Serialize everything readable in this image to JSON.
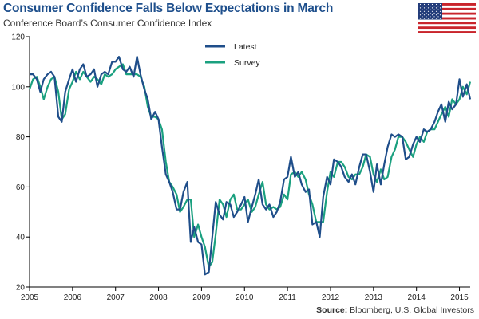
{
  "title": "Consumer Confidence Falls Below Expectations in March",
  "subtitle": "Conference Board’s Consumer Confidence Index",
  "source_label": "Source:",
  "source_text": "Bloomberg, U.S. Global Investors",
  "colors": {
    "latest": "#1f4e8a",
    "survey": "#1aa07f",
    "axis": "#000000",
    "flag_red": "#c9252c",
    "flag_blue": "#233c7a"
  },
  "chart_data": {
    "type": "line",
    "ylim": [
      20,
      120
    ],
    "yticks": [
      20,
      40,
      60,
      80,
      100,
      120
    ],
    "xlim": [
      2005.0,
      2015.25
    ],
    "xticks": [
      2005,
      2006,
      2007,
      2008,
      2009,
      2010,
      2011,
      2012,
      2013,
      2014,
      2015
    ],
    "xtick_labels": [
      "2005",
      "2006",
      "2007",
      "2008",
      "2009",
      "2010",
      "2011",
      "2012",
      "2013",
      "2014",
      "2015"
    ],
    "legend_position": "top-left",
    "grid": false,
    "series": [
      {
        "name": "Latest",
        "points": [
          [
            2005.0,
            105.0
          ],
          [
            2005.08,
            105.0
          ],
          [
            2005.17,
            103.0
          ],
          [
            2005.25,
            98.0
          ],
          [
            2005.33,
            103.0
          ],
          [
            2005.42,
            105.0
          ],
          [
            2005.5,
            106.0
          ],
          [
            2005.58,
            104.0
          ],
          [
            2005.67,
            88.0
          ],
          [
            2005.75,
            86.0
          ],
          [
            2005.83,
            98.0
          ],
          [
            2005.92,
            103.0
          ],
          [
            2006.0,
            107.0
          ],
          [
            2006.08,
            102.0
          ],
          [
            2006.17,
            107.0
          ],
          [
            2006.25,
            109.0
          ],
          [
            2006.33,
            104.0
          ],
          [
            2006.42,
            105.0
          ],
          [
            2006.5,
            107.0
          ],
          [
            2006.58,
            100.0
          ],
          [
            2006.67,
            105.0
          ],
          [
            2006.75,
            106.0
          ],
          [
            2006.83,
            105.0
          ],
          [
            2006.92,
            110.0
          ],
          [
            2007.0,
            110.0
          ],
          [
            2007.08,
            112.0
          ],
          [
            2007.17,
            107.0
          ],
          [
            2007.25,
            106.0
          ],
          [
            2007.33,
            108.0
          ],
          [
            2007.42,
            104.0
          ],
          [
            2007.5,
            112.0
          ],
          [
            2007.58,
            105.0
          ],
          [
            2007.67,
            99.0
          ],
          [
            2007.75,
            95.0
          ],
          [
            2007.83,
            87.0
          ],
          [
            2007.92,
            90.0
          ],
          [
            2008.0,
            87.0
          ],
          [
            2008.08,
            76.0
          ],
          [
            2008.17,
            65.0
          ],
          [
            2008.25,
            62.0
          ],
          [
            2008.33,
            58.0
          ],
          [
            2008.42,
            51.0
          ],
          [
            2008.5,
            51.0
          ],
          [
            2008.58,
            58.0
          ],
          [
            2008.67,
            62.0
          ],
          [
            2008.75,
            38.0
          ],
          [
            2008.83,
            44.0
          ],
          [
            2008.92,
            38.0
          ],
          [
            2009.0,
            37.0
          ],
          [
            2009.08,
            25.0
          ],
          [
            2009.17,
            26.0
          ],
          [
            2009.25,
            40.0
          ],
          [
            2009.33,
            54.0
          ],
          [
            2009.42,
            49.0
          ],
          [
            2009.5,
            47.0
          ],
          [
            2009.58,
            54.0
          ],
          [
            2009.67,
            53.0
          ],
          [
            2009.75,
            48.0
          ],
          [
            2009.83,
            50.0
          ],
          [
            2009.92,
            53.0
          ],
          [
            2010.0,
            56.0
          ],
          [
            2010.08,
            46.0
          ],
          [
            2010.17,
            52.0
          ],
          [
            2010.25,
            57.0
          ],
          [
            2010.33,
            63.0
          ],
          [
            2010.42,
            53.0
          ],
          [
            2010.5,
            51.0
          ],
          [
            2010.58,
            53.0
          ],
          [
            2010.67,
            48.0
          ],
          [
            2010.75,
            50.0
          ],
          [
            2010.83,
            54.0
          ],
          [
            2010.92,
            63.0
          ],
          [
            2011.0,
            64.0
          ],
          [
            2011.08,
            72.0
          ],
          [
            2011.17,
            64.0
          ],
          [
            2011.25,
            66.0
          ],
          [
            2011.33,
            61.0
          ],
          [
            2011.42,
            58.0
          ],
          [
            2011.5,
            59.0
          ],
          [
            2011.58,
            45.0
          ],
          [
            2011.67,
            46.0
          ],
          [
            2011.75,
            40.0
          ],
          [
            2011.83,
            56.0
          ],
          [
            2011.92,
            64.0
          ],
          [
            2012.0,
            61.0
          ],
          [
            2012.08,
            71.0
          ],
          [
            2012.17,
            70.0
          ],
          [
            2012.25,
            68.0
          ],
          [
            2012.33,
            64.0
          ],
          [
            2012.42,
            62.0
          ],
          [
            2012.5,
            65.0
          ],
          [
            2012.58,
            61.0
          ],
          [
            2012.67,
            68.0
          ],
          [
            2012.75,
            73.0
          ],
          [
            2012.83,
            73.0
          ],
          [
            2012.92,
            66.0
          ],
          [
            2013.0,
            58.0
          ],
          [
            2013.08,
            69.0
          ],
          [
            2013.17,
            61.0
          ],
          [
            2013.25,
            69.0
          ],
          [
            2013.33,
            76.0
          ],
          [
            2013.42,
            81.0
          ],
          [
            2013.5,
            80.0
          ],
          [
            2013.58,
            81.0
          ],
          [
            2013.67,
            80.0
          ],
          [
            2013.75,
            71.0
          ],
          [
            2013.83,
            72.0
          ],
          [
            2013.92,
            77.0
          ],
          [
            2014.0,
            80.0
          ],
          [
            2014.08,
            78.0
          ],
          [
            2014.17,
            83.0
          ],
          [
            2014.25,
            82.0
          ],
          [
            2014.33,
            83.0
          ],
          [
            2014.42,
            86.0
          ],
          [
            2014.5,
            90.0
          ],
          [
            2014.58,
            93.0
          ],
          [
            2014.67,
            86.0
          ],
          [
            2014.75,
            94.0
          ],
          [
            2014.83,
            91.0
          ],
          [
            2014.92,
            93.0
          ],
          [
            2015.0,
            103.0
          ],
          [
            2015.08,
            96.0
          ],
          [
            2015.17,
            101.0
          ],
          [
            2015.25,
            95.0
          ]
        ]
      },
      {
        "name": "Survey",
        "points": [
          [
            2005.0,
            99.0
          ],
          [
            2005.08,
            103.0
          ],
          [
            2005.17,
            104.0
          ],
          [
            2005.25,
            100.0
          ],
          [
            2005.33,
            95.0
          ],
          [
            2005.42,
            100.0
          ],
          [
            2005.5,
            103.0
          ],
          [
            2005.58,
            104.0
          ],
          [
            2005.67,
            98.0
          ],
          [
            2005.75,
            87.0
          ],
          [
            2005.83,
            89.0
          ],
          [
            2005.92,
            99.0
          ],
          [
            2006.0,
            102.0
          ],
          [
            2006.08,
            106.0
          ],
          [
            2006.17,
            103.0
          ],
          [
            2006.25,
            106.0
          ],
          [
            2006.33,
            104.0
          ],
          [
            2006.42,
            102.0
          ],
          [
            2006.5,
            104.0
          ],
          [
            2006.58,
            103.0
          ],
          [
            2006.67,
            101.0
          ],
          [
            2006.75,
            105.0
          ],
          [
            2006.83,
            104.0
          ],
          [
            2006.92,
            105.0
          ],
          [
            2007.0,
            107.0
          ],
          [
            2007.08,
            108.0
          ],
          [
            2007.17,
            109.0
          ],
          [
            2007.25,
            105.0
          ],
          [
            2007.33,
            105.0
          ],
          [
            2007.42,
            105.0
          ],
          [
            2007.5,
            105.0
          ],
          [
            2007.58,
            104.0
          ],
          [
            2007.67,
            100.0
          ],
          [
            2007.75,
            92.0
          ],
          [
            2007.83,
            88.0
          ],
          [
            2007.92,
            88.0
          ],
          [
            2008.0,
            87.0
          ],
          [
            2008.08,
            83.0
          ],
          [
            2008.17,
            70.0
          ],
          [
            2008.25,
            62.0
          ],
          [
            2008.33,
            60.0
          ],
          [
            2008.42,
            57.0
          ],
          [
            2008.5,
            50.0
          ],
          [
            2008.58,
            52.0
          ],
          [
            2008.67,
            55.0
          ],
          [
            2008.75,
            55.0
          ],
          [
            2008.83,
            40.0
          ],
          [
            2008.92,
            45.0
          ],
          [
            2009.0,
            40.0
          ],
          [
            2009.08,
            36.0
          ],
          [
            2009.17,
            28.0
          ],
          [
            2009.25,
            30.0
          ],
          [
            2009.33,
            41.0
          ],
          [
            2009.42,
            55.0
          ],
          [
            2009.5,
            53.0
          ],
          [
            2009.58,
            48.0
          ],
          [
            2009.67,
            55.0
          ],
          [
            2009.75,
            57.0
          ],
          [
            2009.83,
            51.0
          ],
          [
            2009.92,
            51.0
          ],
          [
            2010.0,
            53.0
          ],
          [
            2010.08,
            55.0
          ],
          [
            2010.17,
            50.0
          ],
          [
            2010.25,
            52.0
          ],
          [
            2010.33,
            57.0
          ],
          [
            2010.42,
            62.0
          ],
          [
            2010.5,
            53.0
          ],
          [
            2010.58,
            51.0
          ],
          [
            2010.67,
            52.0
          ],
          [
            2010.75,
            51.0
          ],
          [
            2010.83,
            52.0
          ],
          [
            2010.92,
            57.0
          ],
          [
            2011.0,
            55.0
          ],
          [
            2011.08,
            65.0
          ],
          [
            2011.17,
            66.0
          ],
          [
            2011.25,
            64.0
          ],
          [
            2011.33,
            66.0
          ],
          [
            2011.42,
            63.0
          ],
          [
            2011.5,
            57.0
          ],
          [
            2011.58,
            53.0
          ],
          [
            2011.67,
            46.0
          ],
          [
            2011.75,
            46.0
          ],
          [
            2011.83,
            46.0
          ],
          [
            2011.92,
            58.0
          ],
          [
            2012.0,
            66.0
          ],
          [
            2012.08,
            64.0
          ],
          [
            2012.17,
            70.0
          ],
          [
            2012.25,
            70.0
          ],
          [
            2012.33,
            68.0
          ],
          [
            2012.42,
            64.0
          ],
          [
            2012.5,
            63.0
          ],
          [
            2012.58,
            65.0
          ],
          [
            2012.67,
            65.0
          ],
          [
            2012.75,
            68.0
          ],
          [
            2012.83,
            73.0
          ],
          [
            2012.92,
            72.0
          ],
          [
            2013.0,
            65.0
          ],
          [
            2013.08,
            62.0
          ],
          [
            2013.17,
            67.0
          ],
          [
            2013.25,
            63.0
          ],
          [
            2013.33,
            64.0
          ],
          [
            2013.42,
            72.0
          ],
          [
            2013.5,
            75.0
          ],
          [
            2013.58,
            80.0
          ],
          [
            2013.67,
            80.0
          ],
          [
            2013.75,
            78.0
          ],
          [
            2013.83,
            75.0
          ],
          [
            2013.92,
            72.0
          ],
          [
            2014.0,
            77.0
          ],
          [
            2014.08,
            80.0
          ],
          [
            2014.17,
            78.0
          ],
          [
            2014.25,
            82.0
          ],
          [
            2014.33,
            83.0
          ],
          [
            2014.42,
            83.0
          ],
          [
            2014.5,
            86.0
          ],
          [
            2014.58,
            89.0
          ],
          [
            2014.67,
            92.0
          ],
          [
            2014.75,
            88.0
          ],
          [
            2014.83,
            95.0
          ],
          [
            2014.92,
            93.0
          ],
          [
            2015.0,
            95.0
          ],
          [
            2015.08,
            100.0
          ],
          [
            2015.17,
            97.0
          ],
          [
            2015.25,
            102.0
          ]
        ]
      }
    ]
  }
}
